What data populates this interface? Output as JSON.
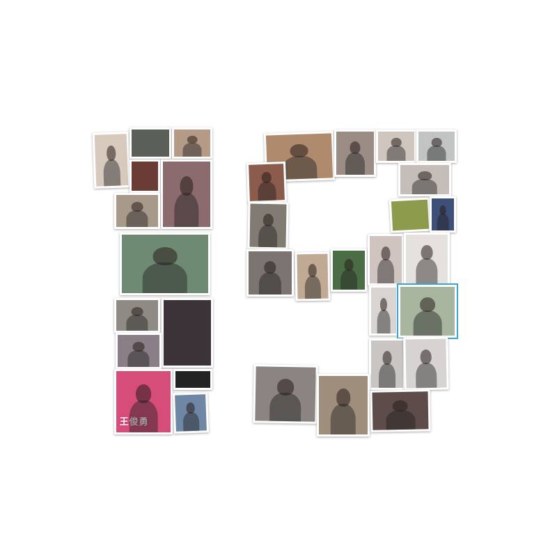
{
  "collage": {
    "description_visible_text": "",
    "photos": [
      {
        "id": "p1",
        "tone": "#d8c9bd"
      },
      {
        "id": "p2",
        "tone": "#5a5f58"
      },
      {
        "id": "p3",
        "tone": "#b59a87"
      },
      {
        "id": "p4",
        "tone": "#6b3b36"
      },
      {
        "id": "p5",
        "tone": "#8c6b6e"
      },
      {
        "id": "p6",
        "tone": "#a89a8a"
      },
      {
        "id": "p7",
        "tone": "#6f8a72"
      },
      {
        "id": "p8",
        "tone": "#8f8a84"
      },
      {
        "id": "p9",
        "tone": "#3b3337"
      },
      {
        "id": "p10",
        "tone": "#8a7f86"
      },
      {
        "id": "p11",
        "tone": "#d74d7a",
        "overlay_text": "王俊勇"
      },
      {
        "id": "p12",
        "tone": "#6f87a5"
      },
      {
        "id": "p13",
        "tone": "#232323"
      },
      {
        "id": "p14",
        "tone": "#b08a6d"
      },
      {
        "id": "p15",
        "tone": "#9b8d86"
      },
      {
        "id": "p16",
        "tone": "#cfc7bf"
      },
      {
        "id": "p17",
        "tone": "#c2c4c4"
      },
      {
        "id": "p18",
        "tone": "#8b5b4b"
      },
      {
        "id": "p19",
        "tone": "#c5beb8"
      },
      {
        "id": "p20",
        "tone": "#827b73"
      },
      {
        "id": "p21",
        "tone": "#8d9b4d"
      },
      {
        "id": "p22",
        "tone": "#3e4f78"
      },
      {
        "id": "p23",
        "tone": "#7b7470"
      },
      {
        "id": "p24",
        "tone": "#c0aa93"
      },
      {
        "id": "p25",
        "tone": "#4b6d46"
      },
      {
        "id": "p26",
        "tone": "#cfc4bf"
      },
      {
        "id": "p27",
        "tone": "#e5e1dd"
      },
      {
        "id": "p28",
        "tone": "#d8d4d2"
      },
      {
        "id": "p29",
        "tone": "#a8b6a0"
      },
      {
        "id": "p30",
        "tone": "#c9c5c2"
      },
      {
        "id": "p31",
        "tone": "#d6d3d2"
      },
      {
        "id": "p32",
        "tone": "#8b8480"
      },
      {
        "id": "p33",
        "tone": "#a08e7c"
      },
      {
        "id": "p34",
        "tone": "#5d4c4a"
      }
    ]
  }
}
